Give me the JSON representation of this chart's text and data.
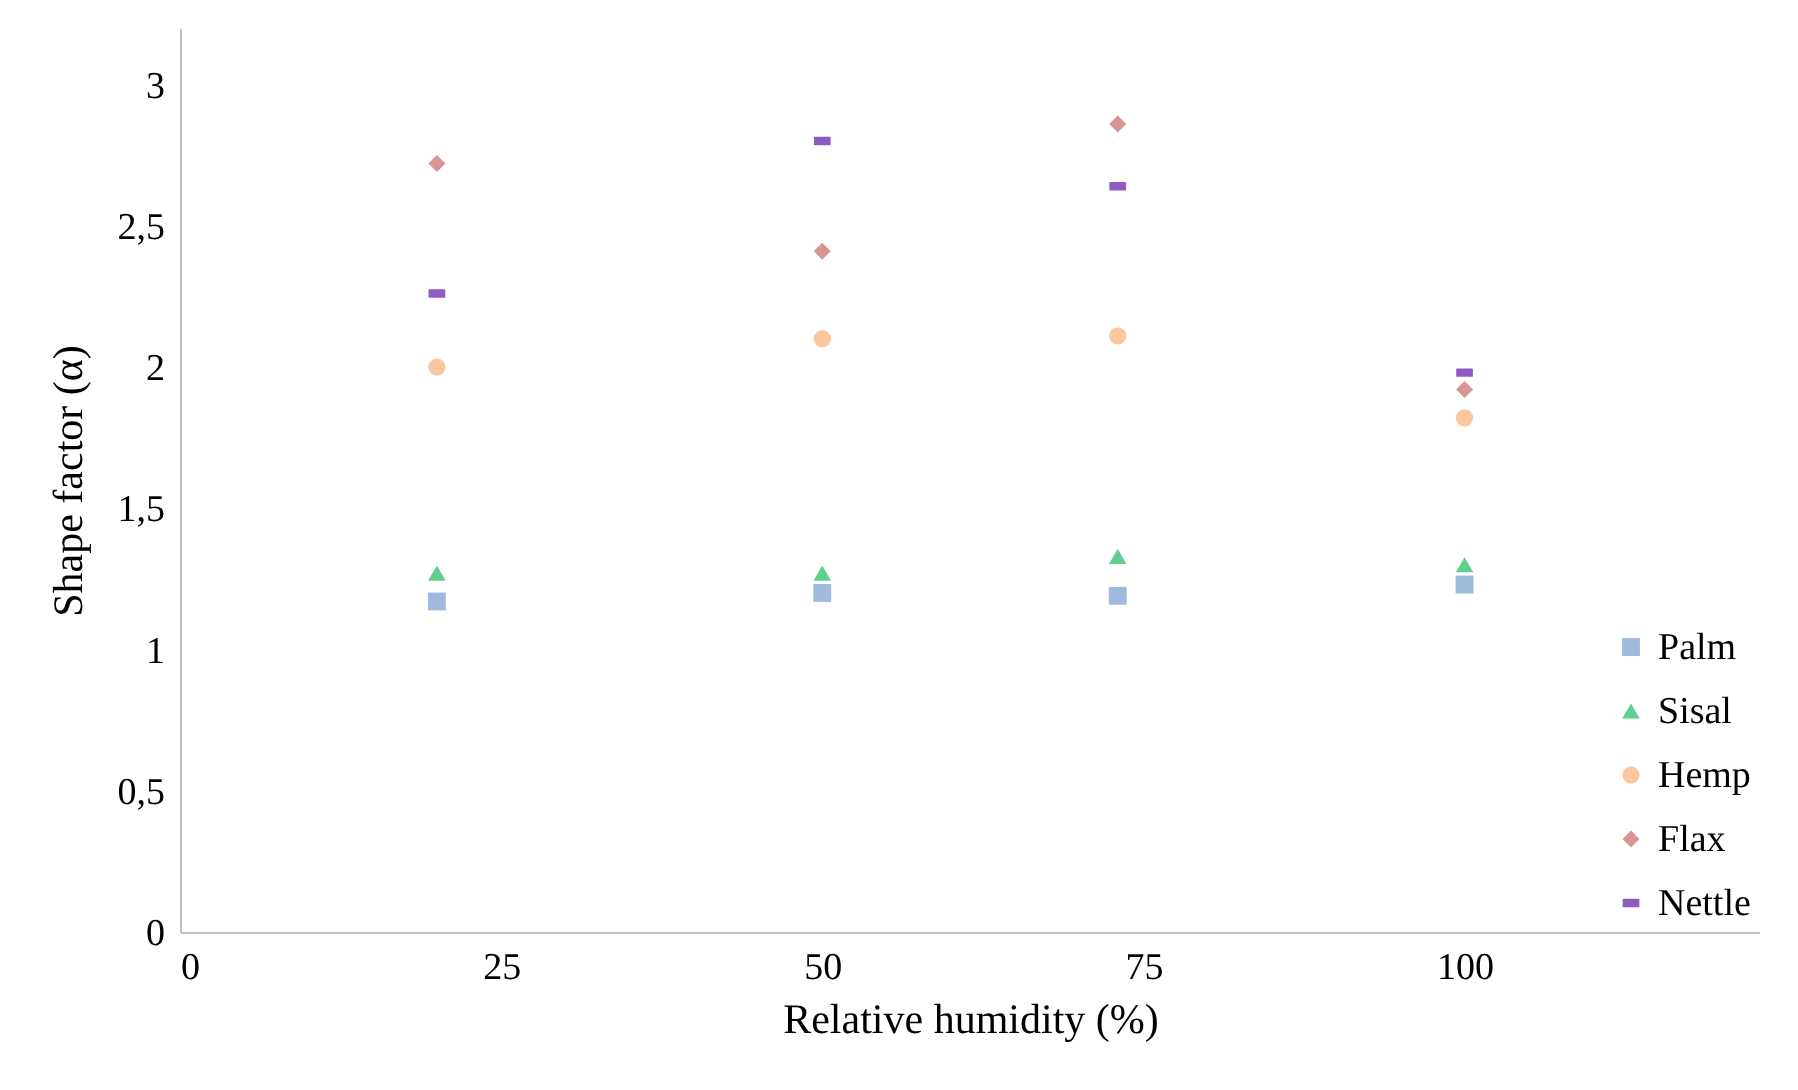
{
  "chart_data": {
    "type": "scatter",
    "xlabel": "Relative humidity (%)",
    "ylabel": "Shape factor (α)",
    "xlim": [
      0,
      123
    ],
    "xticks": [
      0,
      25,
      50,
      75,
      100
    ],
    "ylim": [
      0,
      3.2
    ],
    "yticks": [
      0,
      {
        "value": 0.5,
        "label": "0,5"
      },
      1,
      {
        "value": 1.5,
        "label": "1,5"
      },
      2,
      {
        "value": 2.5,
        "label": "2,5"
      },
      3
    ],
    "grid": false,
    "legend": "bottom right",
    "x": [
      20,
      50,
      73,
      100
    ],
    "series": [
      {
        "name": "Palm",
        "color": "#9fbadc",
        "marker": "square",
        "values": [
          1.17,
          1.2,
          1.19,
          1.23
        ]
      },
      {
        "name": "Sisal",
        "color": "#5fd08e",
        "marker": "triangle",
        "values": [
          1.27,
          1.27,
          1.33,
          1.3
        ]
      },
      {
        "name": "Hemp",
        "color": "#fbc79f",
        "marker": "circle",
        "values": [
          2.0,
          2.1,
          2.11,
          1.82
        ]
      },
      {
        "name": "Flax",
        "color": "#d99594",
        "marker": "diamond",
        "values": [
          2.72,
          2.41,
          2.86,
          1.92
        ]
      },
      {
        "name": "Nettle",
        "color": "#8e5cc0",
        "values": [
          2.26,
          2.8,
          2.64,
          1.98
        ]
      }
    ]
  }
}
